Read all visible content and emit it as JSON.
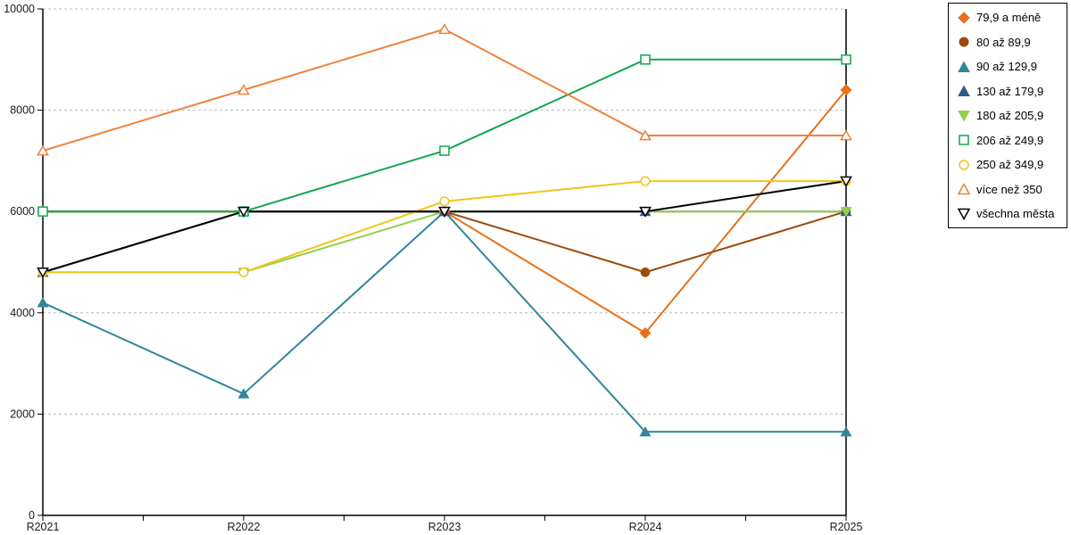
{
  "chart_data": {
    "type": "line",
    "title": "",
    "xlabel": "",
    "ylabel": "",
    "categories": [
      "R2021",
      "R2022",
      "R2023",
      "R2024",
      "R2025"
    ],
    "series": [
      {
        "name": "79,9 a méně",
        "marker": "diamond",
        "filled": true,
        "color": "#E8701A",
        "values": [
          6000,
          6000,
          6000,
          3600,
          8400
        ]
      },
      {
        "name": "80 až 89,9",
        "marker": "circle",
        "filled": true,
        "color": "#9C4A0F",
        "values": [
          6000,
          6000,
          6000,
          4800,
          6000
        ]
      },
      {
        "name": "90 až 129,9",
        "marker": "triangle-up",
        "filled": true,
        "color": "#31859C",
        "values": [
          4200,
          2400,
          6000,
          1650,
          1650
        ]
      },
      {
        "name": "130 až 179,9",
        "marker": "triangle-up",
        "filled": true,
        "color": "#2E5C8A",
        "values": [
          4800,
          6000,
          6000,
          6000,
          6000
        ]
      },
      {
        "name": "180 až 205,9",
        "marker": "triangle-down",
        "filled": true,
        "color": "#92D050",
        "values": [
          4800,
          4800,
          6000,
          6000,
          6000
        ]
      },
      {
        "name": "206 až 249,9",
        "marker": "square",
        "filled": false,
        "color": "#10A64F",
        "values": [
          6000,
          6000,
          7200,
          9000,
          9000
        ]
      },
      {
        "name": "250 až 349,9",
        "marker": "circle",
        "filled": false,
        "color": "#F2C319",
        "values": [
          4800,
          4800,
          6200,
          6600,
          6600
        ]
      },
      {
        "name": "více než 350",
        "marker": "triangle-up",
        "filled": false,
        "color": "#F0813A",
        "values": [
          7200,
          8400,
          9600,
          7500,
          7500
        ]
      },
      {
        "name": "všechna města",
        "marker": "triangle-down",
        "filled": false,
        "color": "#000000",
        "values": [
          4800,
          6000,
          6000,
          6000,
          6600
        ]
      }
    ],
    "ylim": [
      0,
      10000
    ],
    "yticks": [
      0,
      2000,
      4000,
      6000,
      8000,
      10000
    ],
    "y_tick_labels": [
      "0",
      "2000",
      "4000",
      "6000",
      "8000",
      "10000"
    ],
    "grid": "horizontal-dashed",
    "gridline_color": "#BBBBBB",
    "axis_color": "#000000",
    "background_color": "#FFFFFF",
    "legend_position": "top-right"
  }
}
